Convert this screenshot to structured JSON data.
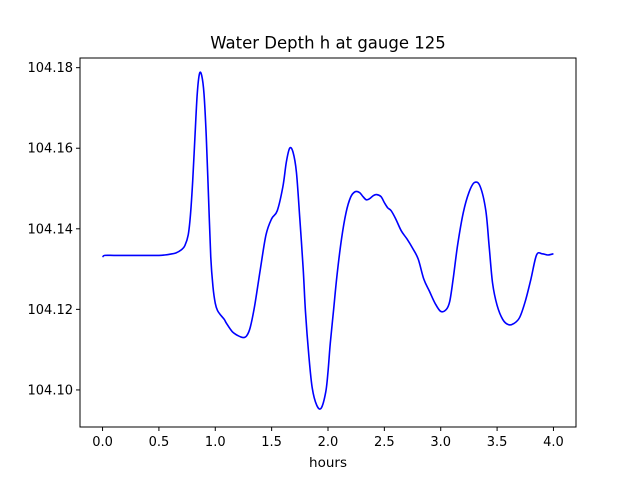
{
  "chart_data": {
    "type": "line",
    "title": "Water Depth h at gauge 125",
    "xlabel": "hours",
    "ylabel": "",
    "xlim": [
      -0.2,
      4.2
    ],
    "ylim": [
      104.0908,
      104.1824
    ],
    "x_ticks": [
      0.0,
      0.5,
      1.0,
      1.5,
      2.0,
      2.5,
      3.0,
      3.5,
      4.0
    ],
    "x_tick_labels": [
      "0.0",
      "0.5",
      "1.0",
      "1.5",
      "2.0",
      "2.5",
      "3.0",
      "3.5",
      "4.0"
    ],
    "y_ticks": [
      104.1,
      104.12,
      104.14,
      104.16,
      104.18
    ],
    "y_tick_labels": [
      "104.10",
      "104.12",
      "104.14",
      "104.16",
      "104.18"
    ],
    "grid": false,
    "series": [
      {
        "color": "#0000ff",
        "x": [
          0.0,
          0.02,
          0.1,
          0.2,
          0.3,
          0.4,
          0.5,
          0.55,
          0.6,
          0.65,
          0.7,
          0.73,
          0.76,
          0.78,
          0.8,
          0.82,
          0.84,
          0.86,
          0.88,
          0.9,
          0.92,
          0.94,
          0.96,
          0.98,
          1.0,
          1.02,
          1.05,
          1.08,
          1.1,
          1.15,
          1.2,
          1.25,
          1.28,
          1.31,
          1.35,
          1.4,
          1.45,
          1.5,
          1.55,
          1.6,
          1.63,
          1.66,
          1.69,
          1.72,
          1.75,
          1.78,
          1.8,
          1.83,
          1.86,
          1.9,
          1.94,
          1.98,
          2.0,
          2.02,
          2.05,
          2.08,
          2.12,
          2.16,
          2.2,
          2.24,
          2.28,
          2.31,
          2.34,
          2.37,
          2.4,
          2.43,
          2.47,
          2.5,
          2.53,
          2.56,
          2.6,
          2.65,
          2.7,
          2.75,
          2.8,
          2.85,
          2.9,
          2.95,
          3.0,
          3.05,
          3.08,
          3.11,
          3.15,
          3.2,
          3.25,
          3.3,
          3.35,
          3.4,
          3.43,
          3.46,
          3.5,
          3.55,
          3.6,
          3.65,
          3.7,
          3.75,
          3.8,
          3.85,
          3.9,
          3.95,
          4.0
        ],
        "y": [
          104.133,
          104.1334,
          104.1334,
          104.1334,
          104.1334,
          104.1334,
          104.1334,
          104.1335,
          104.1337,
          104.134,
          104.1348,
          104.1358,
          104.1385,
          104.1435,
          104.152,
          104.163,
          104.1735,
          104.1785,
          104.178,
          104.1735,
          104.163,
          104.148,
          104.133,
          104.1255,
          104.1215,
          104.1197,
          104.1185,
          104.1175,
          104.1165,
          104.1145,
          104.1135,
          104.113,
          104.1135,
          104.1155,
          104.121,
          104.13,
          104.1385,
          104.1425,
          104.1445,
          104.1505,
          104.1565,
          104.16,
          104.159,
          104.154,
          104.1425,
          104.13,
          104.1195,
          104.1085,
          104.1005,
          104.0962,
          104.0955,
          104.0995,
          104.1045,
          104.1115,
          104.12,
          104.1285,
          104.1375,
          104.144,
          104.1478,
          104.1492,
          104.149,
          104.148,
          104.1472,
          104.1475,
          104.1482,
          104.1485,
          104.148,
          104.1465,
          104.1452,
          104.1445,
          104.1425,
          104.1395,
          104.1375,
          104.1352,
          104.1325,
          104.1275,
          104.1245,
          104.1215,
          104.1195,
          104.12,
          104.122,
          104.1275,
          104.136,
          104.144,
          104.149,
          104.1515,
          104.1505,
          104.1445,
          104.1355,
          104.1265,
          104.121,
          104.1175,
          104.1162,
          104.1165,
          104.118,
          104.122,
          104.1275,
          104.1335,
          104.1338,
          104.1335,
          104.1338
        ]
      }
    ]
  }
}
